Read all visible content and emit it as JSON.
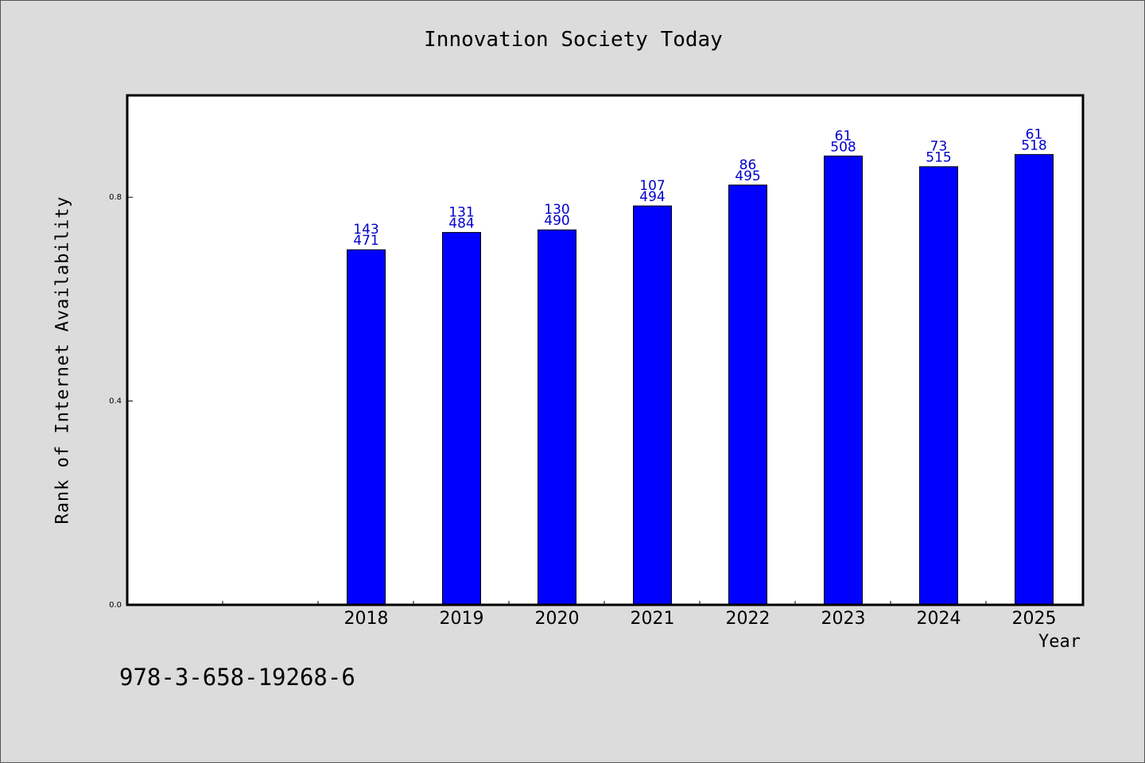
{
  "chart_data": {
    "type": "bar",
    "title": "Innovation Society Today",
    "xlabel": "Year",
    "ylabel": "Rank of Internet Availability",
    "categories": [
      "2018",
      "2019",
      "2020",
      "2021",
      "2022",
      "2023",
      "2024",
      "2025"
    ],
    "values": [
      0.697,
      0.731,
      0.736,
      0.783,
      0.824,
      0.881,
      0.86,
      0.884
    ],
    "bar_labels_top": [
      "143",
      "131",
      "130",
      "107",
      "86",
      "61",
      "73",
      "61"
    ],
    "bar_labels_bottom": [
      "471",
      "484",
      "490",
      "494",
      "495",
      "508",
      "515",
      "518"
    ],
    "ylim": [
      0,
      1.0
    ],
    "yticks": [
      0.0,
      0.4,
      0.8
    ],
    "ytick_labels": [
      "0.0",
      "0.4",
      "0.8"
    ],
    "xlim_categories_offset": 2,
    "grid": false,
    "bar_color": "#0000ff",
    "label_color": "#0000cc",
    "legend": "none"
  },
  "footer": {
    "code": "978-3-658-19268-6"
  }
}
